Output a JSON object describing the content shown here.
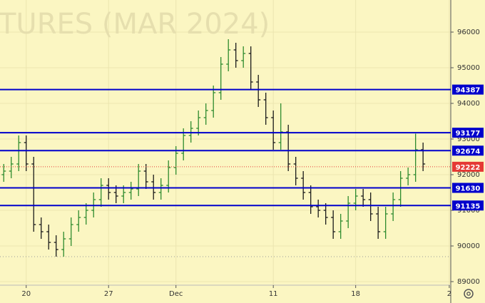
{
  "chart_data": {
    "type": "ohlc",
    "watermark": "TURES (MAR 2024)",
    "open": [
      92000,
      92100,
      92300,
      92900,
      92300,
      90600,
      90400,
      90100,
      89900,
      90200,
      90600,
      90800,
      91000,
      91300,
      91700,
      91500,
      91400,
      91500,
      91600,
      92100,
      91800,
      91500,
      91700,
      92200,
      92600,
      93100,
      93300,
      93600,
      93800,
      94300,
      95100,
      95500,
      95200,
      95400,
      94600,
      94100,
      93600,
      92900,
      93200,
      92300,
      91900,
      91500,
      91100,
      91000,
      90800,
      90400,
      90700,
      91200,
      91400,
      91300,
      90900,
      90400,
      90900,
      91300,
      91900,
      92000,
      92700
    ],
    "high": [
      92300,
      92500,
      93100,
      93100,
      92500,
      90800,
      90600,
      90300,
      90400,
      90800,
      91000,
      91200,
      91500,
      91900,
      91900,
      91700,
      91700,
      91800,
      92300,
      92300,
      92000,
      91900,
      92400,
      92800,
      93300,
      93500,
      93800,
      94000,
      94500,
      95300,
      95800,
      95700,
      95600,
      95600,
      94800,
      94300,
      93800,
      94000,
      93400,
      92500,
      92100,
      91700,
      91300,
      91200,
      91000,
      90900,
      91400,
      91600,
      91600,
      91500,
      91100,
      91100,
      91500,
      92100,
      92200,
      93150,
      92900
    ],
    "low": [
      91800,
      91900,
      92100,
      92100,
      90400,
      90200,
      89900,
      89700,
      89700,
      90000,
      90400,
      90600,
      90800,
      91100,
      91300,
      91200,
      91200,
      91300,
      91400,
      91600,
      91300,
      91300,
      91500,
      92000,
      92400,
      92900,
      93100,
      93400,
      93600,
      94100,
      94900,
      95000,
      95000,
      94400,
      93900,
      93400,
      92700,
      92700,
      92100,
      91700,
      91300,
      90900,
      90800,
      90600,
      90200,
      90200,
      90500,
      91000,
      91100,
      90700,
      90200,
      90200,
      90700,
      91100,
      91700,
      91800,
      92100
    ],
    "close": [
      92100,
      92300,
      92900,
      92300,
      90600,
      90400,
      90100,
      89900,
      90200,
      90600,
      90800,
      91000,
      91300,
      91700,
      91500,
      91400,
      91500,
      91600,
      92100,
      91800,
      91500,
      91700,
      92200,
      92600,
      93100,
      93300,
      93600,
      93800,
      94300,
      95100,
      95500,
      95200,
      95400,
      94600,
      94100,
      93600,
      92900,
      93200,
      92300,
      91900,
      91500,
      91100,
      91000,
      90800,
      90400,
      90700,
      91200,
      91400,
      91300,
      90900,
      90400,
      90900,
      91300,
      91900,
      92000,
      92700,
      92300
    ],
    "up_color": "#2e8b2e",
    "down_color": "#1a1a1a",
    "xlim": [
      -0.5,
      59.7
    ],
    "xticks": [
      {
        "value": 3,
        "label": "20"
      },
      {
        "value": 14,
        "label": "27"
      },
      {
        "value": 23,
        "label": "Dec"
      },
      {
        "value": 36,
        "label": "11"
      },
      {
        "value": 47,
        "label": "18"
      },
      {
        "value": 59.5,
        "label": "2"
      }
    ],
    "ylim": [
      88900,
      96900
    ],
    "yticks": [
      89000,
      90000,
      91000,
      92000,
      93000,
      94000,
      95000,
      96000
    ],
    "grid": true,
    "levels": [
      {
        "value": 94387,
        "color": "#0000cc"
      },
      {
        "value": 93177,
        "color": "#0000cc"
      },
      {
        "value": 92674,
        "color": "#0000cc"
      },
      {
        "value": 91630,
        "color": "#0000cc"
      },
      {
        "value": 91135,
        "color": "#0000cc"
      }
    ],
    "last_price": {
      "value": 92222,
      "color": "#e53935"
    },
    "low_marker": {
      "value": 89700,
      "color": "#999999"
    }
  }
}
